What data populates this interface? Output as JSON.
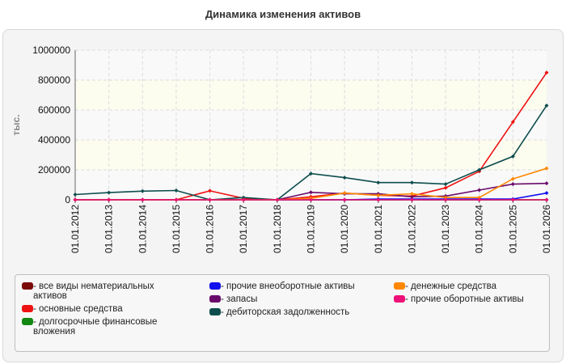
{
  "chart_data": {
    "type": "line",
    "title": "Динамика изменения активов",
    "ylabel": "тыс.",
    "xlabel": "",
    "ylim": [
      0,
      1000000
    ],
    "yticks": [
      "0",
      "200000",
      "400000",
      "600000",
      "800000",
      "1000000"
    ],
    "categories": [
      "01.01.2012",
      "01.01.2013",
      "01.01.2014",
      "01.01.2015",
      "01.01.2016",
      "01.01.2017",
      "01.01.2018",
      "01.01.2019",
      "01.01.2020",
      "01.01.2021",
      "01.01.2022",
      "01.01.2023",
      "01.01.2024",
      "01.01.2025",
      "01.01.2026"
    ],
    "legend_position": "bottom",
    "series": [
      {
        "name": "- все виды нематериальных активов",
        "color": "#7a0a0a",
        "values": [
          0,
          0,
          0,
          0,
          0,
          0,
          0,
          0,
          0,
          0,
          0,
          0,
          0,
          0,
          0
        ]
      },
      {
        "name": "- основные средства",
        "color": "#ee1111",
        "values": [
          0,
          0,
          0,
          0,
          60000,
          10000,
          0,
          20000,
          45000,
          30000,
          25000,
          80000,
          190000,
          520000,
          850000
        ]
      },
      {
        "name": "- долгосрочные финансовые вложения",
        "color": "#118811",
        "values": [
          0,
          0,
          0,
          0,
          0,
          0,
          0,
          0,
          0,
          0,
          0,
          0,
          0,
          0,
          0
        ]
      },
      {
        "name": "- прочие внеоборотные активы",
        "color": "#1111ee",
        "values": [
          0,
          0,
          0,
          0,
          0,
          0,
          0,
          0,
          0,
          5000,
          5000,
          5000,
          5000,
          5000,
          45000
        ]
      },
      {
        "name": "- запасы",
        "color": "#6a0a6a",
        "values": [
          0,
          0,
          0,
          0,
          0,
          0,
          0,
          50000,
          40000,
          40000,
          20000,
          25000,
          65000,
          105000,
          110000
        ]
      },
      {
        "name": "- дебиторская задолженность",
        "color": "#0e4d4d",
        "values": [
          35000,
          48000,
          58000,
          62000,
          0,
          15000,
          0,
          175000,
          148000,
          115000,
          115000,
          105000,
          200000,
          290000,
          630000
        ]
      },
      {
        "name": "- денежные средства",
        "color": "#ff8800",
        "values": [
          0,
          0,
          0,
          0,
          0,
          0,
          0,
          10000,
          45000,
          30000,
          40000,
          15000,
          15000,
          140000,
          210000
        ]
      },
      {
        "name": "- прочие оборотные активы",
        "color": "#ee1177",
        "values": [
          0,
          0,
          0,
          0,
          0,
          0,
          0,
          0,
          0,
          0,
          0,
          0,
          0,
          0,
          0
        ]
      }
    ]
  }
}
